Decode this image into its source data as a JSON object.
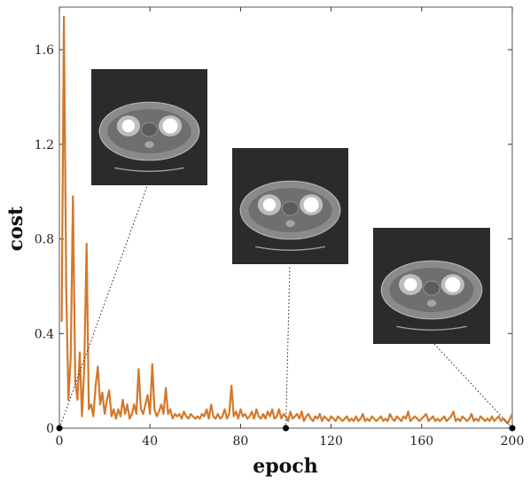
{
  "chart_data": {
    "type": "line",
    "xlabel": "epoch",
    "ylabel": "cost",
    "xlim": [
      0,
      200
    ],
    "ylim": [
      0,
      1.78
    ],
    "xticks": [
      0,
      40,
      80,
      120,
      160,
      200
    ],
    "yticks": [
      0,
      0.4,
      0.8,
      1.2,
      1.6
    ],
    "xtick_labels": [
      "0",
      "40",
      "80",
      "120",
      "160",
      "200"
    ],
    "ytick_labels": [
      "0",
      "0.4",
      "0.8",
      "1.2",
      "1.6"
    ],
    "grid": true,
    "line_color": "#d4782a",
    "series": [
      {
        "name": "",
        "x": [
          1,
          2,
          3,
          4,
          5,
          6,
          7,
          8,
          9,
          10,
          11,
          12,
          13,
          14,
          15,
          16,
          17,
          18,
          19,
          20,
          21,
          22,
          23,
          24,
          25,
          26,
          27,
          28,
          29,
          30,
          31,
          32,
          33,
          34,
          35,
          36,
          37,
          38,
          39,
          40,
          41,
          42,
          43,
          44,
          45,
          46,
          47,
          48,
          49,
          50,
          51,
          52,
          53,
          54,
          55,
          56,
          57,
          58,
          59,
          60,
          61,
          62,
          63,
          64,
          65,
          66,
          67,
          68,
          69,
          70,
          71,
          72,
          73,
          74,
          75,
          76,
          77,
          78,
          79,
          80,
          81,
          82,
          83,
          84,
          85,
          86,
          87,
          88,
          89,
          90,
          91,
          92,
          93,
          94,
          95,
          96,
          97,
          98,
          99,
          100,
          101,
          102,
          103,
          104,
          105,
          106,
          107,
          108,
          109,
          110,
          111,
          112,
          113,
          114,
          115,
          116,
          117,
          118,
          119,
          120,
          121,
          122,
          123,
          124,
          125,
          126,
          127,
          128,
          129,
          130,
          131,
          132,
          133,
          134,
          135,
          136,
          137,
          138,
          139,
          140,
          141,
          142,
          143,
          144,
          145,
          146,
          147,
          148,
          149,
          150,
          151,
          152,
          153,
          154,
          155,
          156,
          157,
          158,
          159,
          160,
          161,
          162,
          163,
          164,
          165,
          166,
          167,
          168,
          169,
          170,
          171,
          172,
          173,
          174,
          175,
          176,
          177,
          178,
          179,
          180,
          181,
          182,
          183,
          184,
          185,
          186,
          187,
          188,
          189,
          190,
          191,
          192,
          193,
          194,
          195,
          196,
          197,
          198,
          199,
          200
        ],
        "y": [
          0.45,
          1.74,
          0.6,
          0.12,
          0.3,
          0.98,
          0.2,
          0.12,
          0.32,
          0.05,
          0.26,
          0.78,
          0.08,
          0.1,
          0.05,
          0.18,
          0.26,
          0.1,
          0.15,
          0.06,
          0.12,
          0.16,
          0.05,
          0.08,
          0.04,
          0.08,
          0.05,
          0.12,
          0.06,
          0.1,
          0.04,
          0.06,
          0.1,
          0.06,
          0.25,
          0.08,
          0.06,
          0.1,
          0.14,
          0.06,
          0.27,
          0.08,
          0.05,
          0.07,
          0.1,
          0.06,
          0.17,
          0.06,
          0.08,
          0.04,
          0.06,
          0.05,
          0.06,
          0.04,
          0.07,
          0.05,
          0.04,
          0.06,
          0.05,
          0.04,
          0.05,
          0.04,
          0.06,
          0.05,
          0.08,
          0.04,
          0.1,
          0.05,
          0.04,
          0.06,
          0.04,
          0.05,
          0.08,
          0.04,
          0.06,
          0.18,
          0.05,
          0.07,
          0.04,
          0.08,
          0.05,
          0.06,
          0.04,
          0.05,
          0.07,
          0.04,
          0.08,
          0.05,
          0.04,
          0.06,
          0.04,
          0.07,
          0.05,
          0.08,
          0.04,
          0.05,
          0.08,
          0.04,
          0.06,
          0.05,
          0.03,
          0.07,
          0.04,
          0.05,
          0.06,
          0.04,
          0.07,
          0.03,
          0.05,
          0.06,
          0.04,
          0.03,
          0.05,
          0.04,
          0.06,
          0.03,
          0.05,
          0.04,
          0.03,
          0.05,
          0.04,
          0.03,
          0.05,
          0.04,
          0.03,
          0.04,
          0.05,
          0.03,
          0.04,
          0.03,
          0.05,
          0.03,
          0.04,
          0.06,
          0.03,
          0.04,
          0.03,
          0.05,
          0.04,
          0.03,
          0.04,
          0.05,
          0.03,
          0.04,
          0.03,
          0.06,
          0.04,
          0.03,
          0.05,
          0.04,
          0.03,
          0.05,
          0.04,
          0.07,
          0.03,
          0.04,
          0.05,
          0.04,
          0.03,
          0.04,
          0.05,
          0.06,
          0.03,
          0.04,
          0.05,
          0.03,
          0.04,
          0.03,
          0.04,
          0.05,
          0.03,
          0.04,
          0.05,
          0.07,
          0.03,
          0.04,
          0.03,
          0.05,
          0.04,
          0.03,
          0.04,
          0.06,
          0.03,
          0.04,
          0.03,
          0.05,
          0.04,
          0.03,
          0.04,
          0.03,
          0.05,
          0.03,
          0.04,
          0.05,
          0.03,
          0.04,
          0.03,
          0.02,
          0.04,
          0.06
        ]
      }
    ],
    "annotations": [
      {
        "epoch": 0,
        "cost": 0
      },
      {
        "epoch": 100,
        "cost": 0
      },
      {
        "epoch": 200,
        "cost": 0
      }
    ],
    "colors": {
      "background": "#ffffff",
      "grid": "#e3e3e3",
      "axis": "#000000"
    }
  }
}
